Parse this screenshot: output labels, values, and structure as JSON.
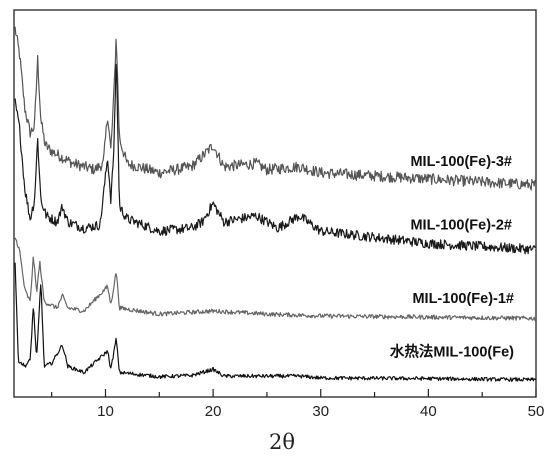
{
  "chart_data": {
    "type": "line",
    "title": "",
    "xlabel": "2θ",
    "ylabel": "",
    "xlim": [
      1.5,
      50
    ],
    "xticks": [
      10,
      20,
      30,
      40,
      50
    ],
    "yticks_shown": false,
    "grid": false,
    "series": [
      {
        "name": "MIL-100(Fe)-3#",
        "color": "#555555",
        "baseline": 3.4,
        "noise": 0.09,
        "points": [
          [
            1.6,
            6.0
          ],
          [
            2.0,
            5.6
          ],
          [
            2.5,
            4.7
          ],
          [
            3.0,
            4.3
          ],
          [
            3.4,
            4.4
          ],
          [
            3.7,
            5.5
          ],
          [
            4.0,
            4.5
          ],
          [
            4.4,
            4.1
          ],
          [
            5.0,
            4.0
          ],
          [
            6.0,
            3.9
          ],
          [
            7.0,
            3.8
          ],
          [
            8.0,
            3.75
          ],
          [
            9.0,
            3.7
          ],
          [
            9.8,
            3.8
          ],
          [
            10.2,
            4.6
          ],
          [
            10.5,
            4.0
          ],
          [
            10.8,
            5.0
          ],
          [
            11.0,
            5.9
          ],
          [
            11.3,
            4.2
          ],
          [
            12,
            3.8
          ],
          [
            15,
            3.65
          ],
          [
            18,
            3.75
          ],
          [
            19.2,
            3.95
          ],
          [
            20.0,
            4.1
          ],
          [
            21,
            3.75
          ],
          [
            24,
            3.8
          ],
          [
            25,
            3.7
          ],
          [
            28,
            3.75
          ],
          [
            30,
            3.65
          ],
          [
            35,
            3.6
          ],
          [
            40,
            3.55
          ],
          [
            45,
            3.5
          ],
          [
            50,
            3.45
          ]
        ]
      },
      {
        "name": "MIL-100(Fe)-2#",
        "color": "#1a1a1a",
        "baseline": 2.3,
        "noise": 0.08,
        "points": [
          [
            1.6,
            4.8
          ],
          [
            2.0,
            4.4
          ],
          [
            2.5,
            3.4
          ],
          [
            3.0,
            2.9
          ],
          [
            3.4,
            3.2
          ],
          [
            3.7,
            4.2
          ],
          [
            4.0,
            3.2
          ],
          [
            4.5,
            2.95
          ],
          [
            5.5,
            2.85
          ],
          [
            6.0,
            3.1
          ],
          [
            6.5,
            2.85
          ],
          [
            8,
            2.75
          ],
          [
            9.5,
            2.8
          ],
          [
            10.2,
            3.9
          ],
          [
            10.5,
            3.2
          ],
          [
            10.8,
            4.1
          ],
          [
            11.0,
            5.6
          ],
          [
            11.3,
            3.1
          ],
          [
            12,
            2.9
          ],
          [
            15,
            2.7
          ],
          [
            18,
            2.75
          ],
          [
            19,
            2.85
          ],
          [
            20.0,
            3.15
          ],
          [
            21,
            2.85
          ],
          [
            24,
            2.95
          ],
          [
            26,
            2.75
          ],
          [
            28,
            2.95
          ],
          [
            30,
            2.7
          ],
          [
            35,
            2.6
          ],
          [
            40,
            2.5
          ],
          [
            45,
            2.45
          ],
          [
            50,
            2.4
          ]
        ]
      },
      {
        "name": "MIL-100(Fe)-1#",
        "color": "#666666",
        "baseline": 1.3,
        "noise": 0.035,
        "points": [
          [
            1.6,
            2.6
          ],
          [
            2.0,
            2.4
          ],
          [
            2.5,
            1.75
          ],
          [
            3.0,
            1.55
          ],
          [
            3.3,
            2.3
          ],
          [
            3.6,
            1.7
          ],
          [
            3.9,
            2.2
          ],
          [
            4.3,
            1.55
          ],
          [
            5.5,
            1.45
          ],
          [
            6.0,
            1.65
          ],
          [
            6.5,
            1.45
          ],
          [
            8,
            1.4
          ],
          [
            10.2,
            1.8
          ],
          [
            10.5,
            1.5
          ],
          [
            11.0,
            2.05
          ],
          [
            11.3,
            1.45
          ],
          [
            15,
            1.35
          ],
          [
            20,
            1.4
          ],
          [
            25,
            1.35
          ],
          [
            30,
            1.32
          ],
          [
            40,
            1.3
          ],
          [
            50,
            1.28
          ]
        ]
      },
      {
        "name": "水热法MIL-100(Fe)",
        "color": "#111111",
        "baseline": 0.3,
        "noise": 0.03,
        "points": [
          [
            1.6,
            2.2
          ],
          [
            1.9,
            0.6
          ],
          [
            2.5,
            0.5
          ],
          [
            3.0,
            0.6
          ],
          [
            3.3,
            1.5
          ],
          [
            3.6,
            0.6
          ],
          [
            4.0,
            1.9
          ],
          [
            4.3,
            0.5
          ],
          [
            5.0,
            0.55
          ],
          [
            5.5,
            0.7
          ],
          [
            6.0,
            0.85
          ],
          [
            6.5,
            0.5
          ],
          [
            8,
            0.4
          ],
          [
            10.2,
            0.75
          ],
          [
            10.5,
            0.45
          ],
          [
            11.0,
            0.95
          ],
          [
            11.3,
            0.4
          ],
          [
            15,
            0.33
          ],
          [
            18,
            0.35
          ],
          [
            20,
            0.45
          ],
          [
            21,
            0.34
          ],
          [
            28,
            0.34
          ],
          [
            30,
            0.31
          ],
          [
            40,
            0.3
          ],
          [
            50,
            0.28
          ]
        ]
      }
    ]
  }
}
